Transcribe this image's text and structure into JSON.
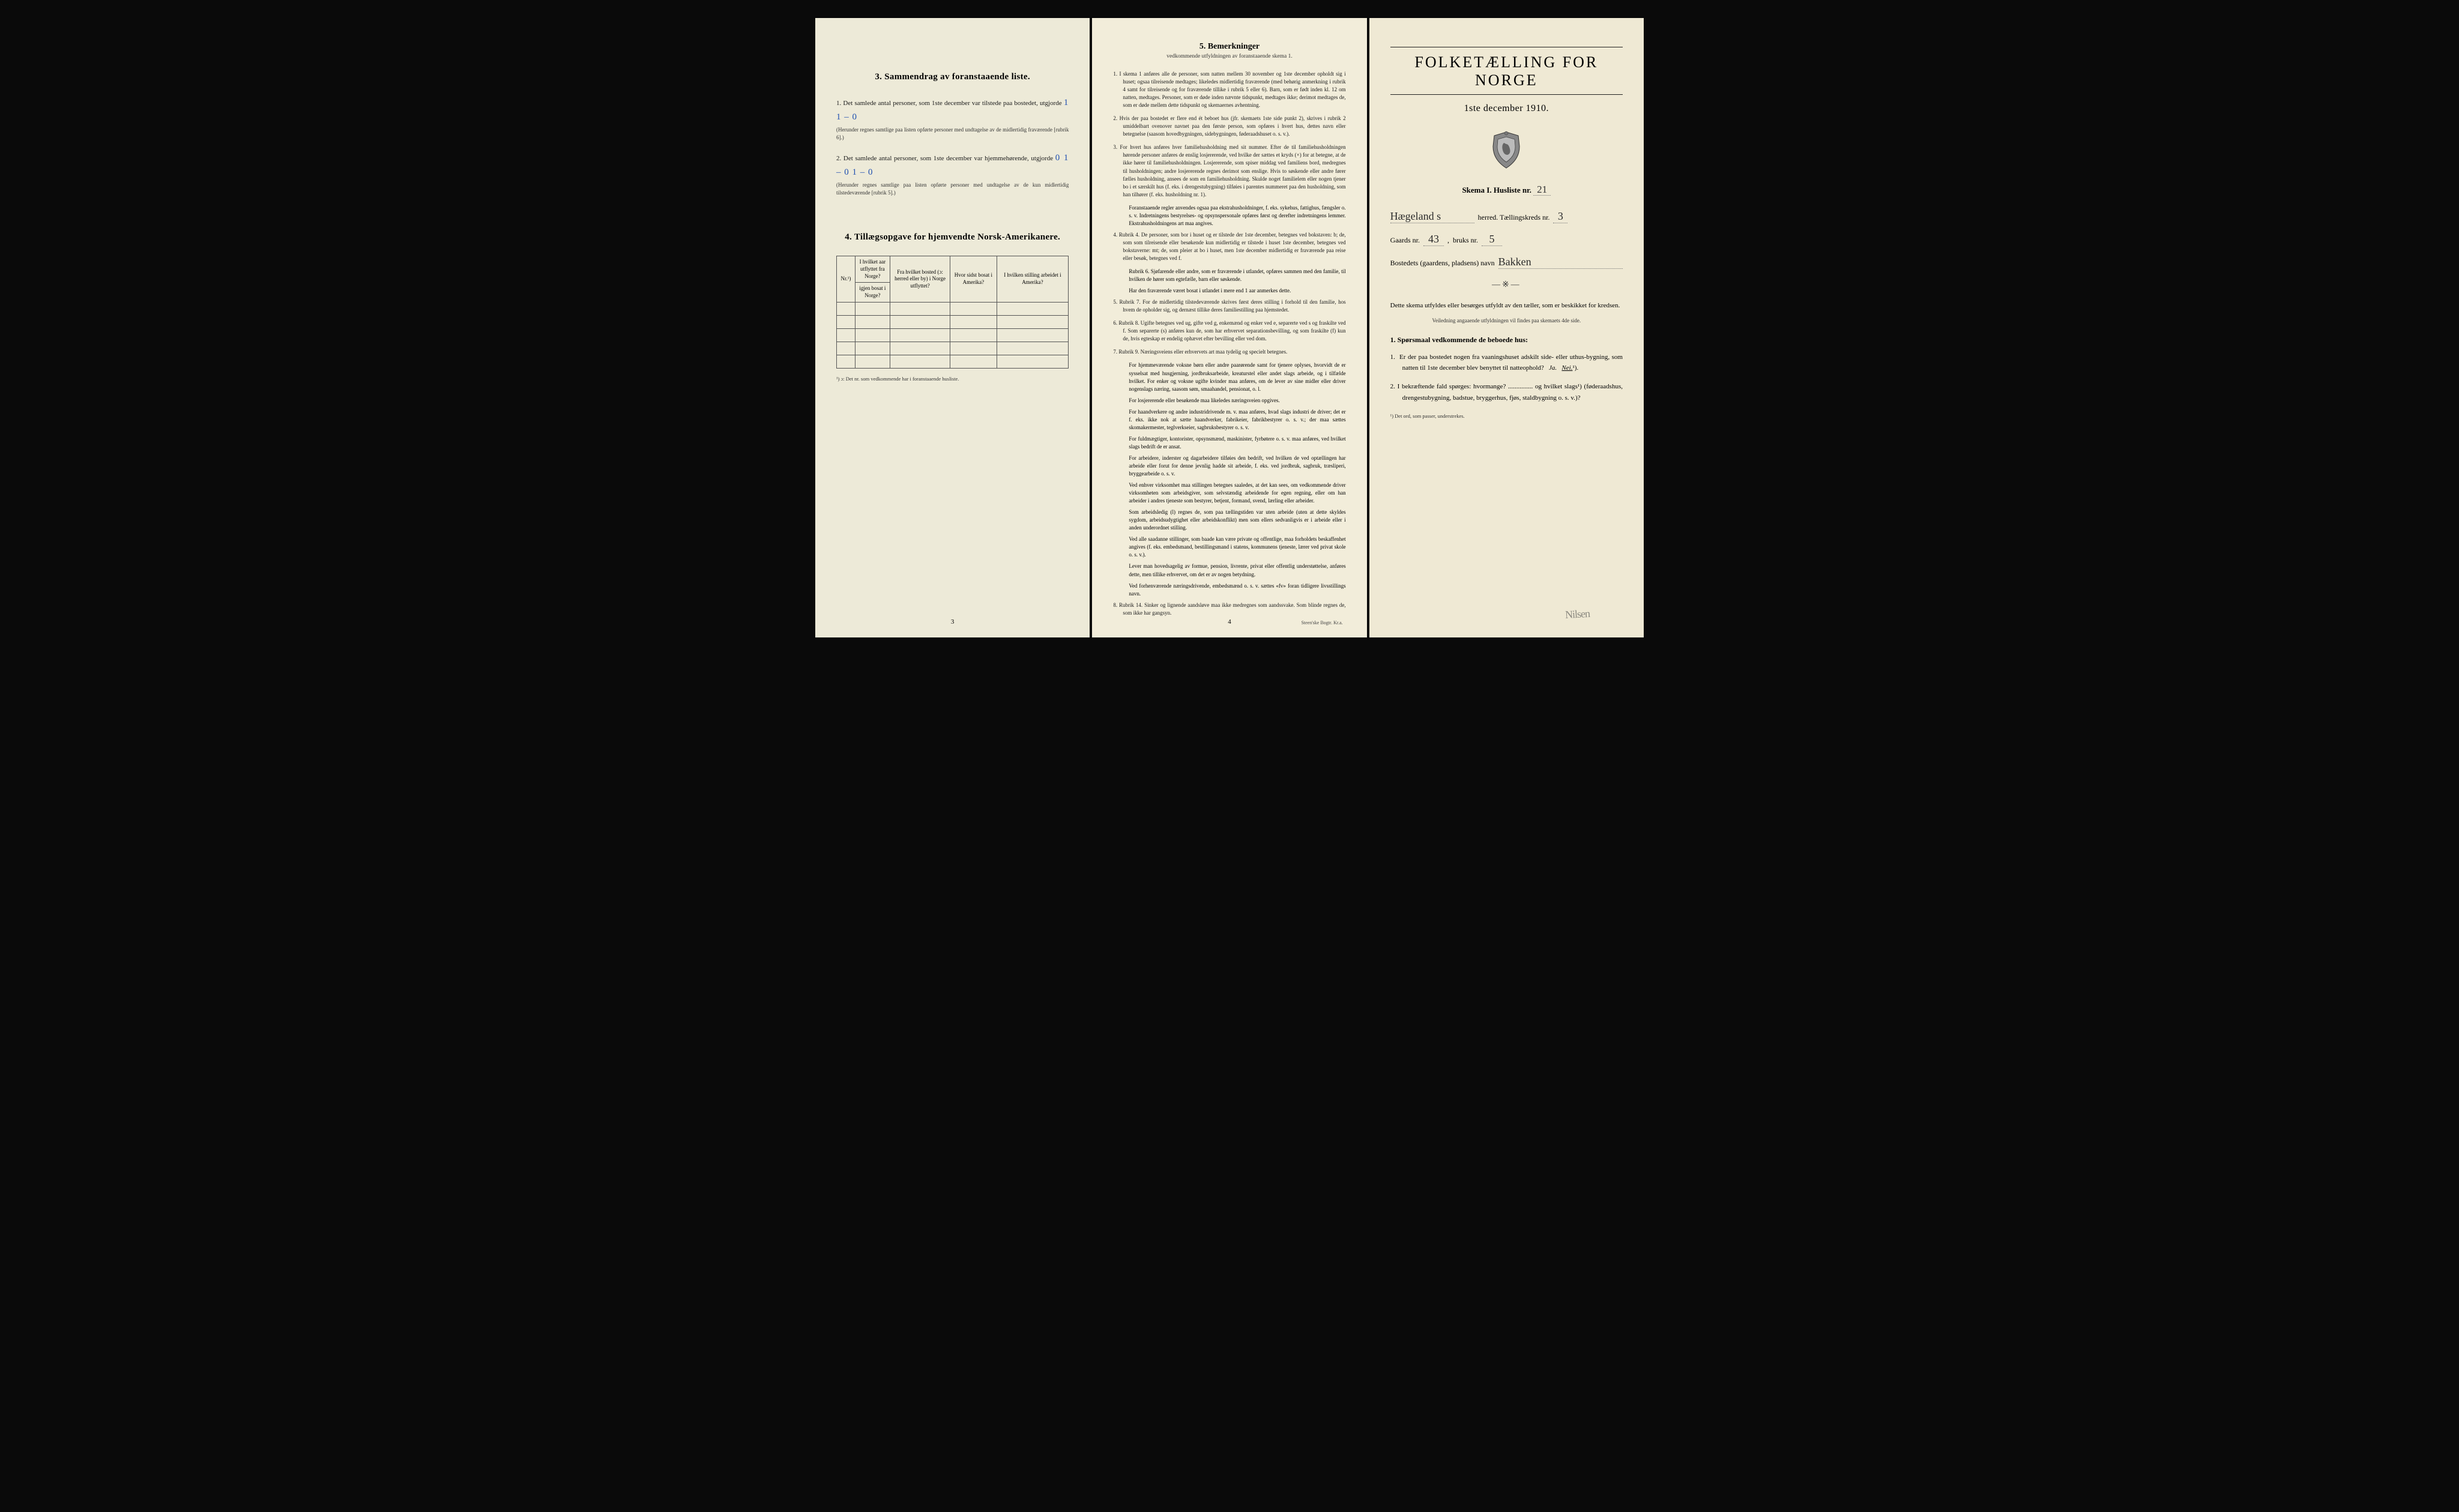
{
  "left": {
    "section3_title": "3.  Sammendrag av foranstaaende liste.",
    "item1_pre": "1.  Det samlede antal personer, som 1ste december var tilstede paa bostedet, utgjorde ",
    "item1_hand": "1    1 – 0",
    "item1_fine": "(Herunder regnes samtlige paa listen opførte personer med undtagelse av de midlertidig fraværende [rubrik 6].)",
    "item2_pre": "2.  Det samlede antal personer, som 1ste december var hjemmehørende, utgjorde ",
    "item2_hand": "0 1 – 0 1 – 0",
    "item2_fine": "(Herunder regnes samtlige paa listen opførte personer med undtagelse av de kun midlertidig tilstedeværende [rubrik 5].)",
    "section4_title": "4.  Tillægsopgave for hjemvendte Norsk-Amerikanere.",
    "th_nr": "Nr.¹)",
    "th_a": "I hvilket aar utflyttet fra Norge?",
    "th_b": "Fra hvilket bosted (ɔ: herred eller by) i Norge utflyttet?",
    "th_c": "Hvor sidst bosat i Amerika?",
    "th_d": "I hvilken stilling arbeidet i Amerika?",
    "th_e": "igjen bosat i Norge?",
    "footnote": "¹) ɔ: Det nr. som vedkommende har i foranstaaende husliste.",
    "page": "3"
  },
  "middle": {
    "title": "5.  Bemerkninger",
    "sub": "vedkommende utfyldningen av foranstaaende skema 1.",
    "items": [
      "1.  I skema 1 anføres alle de personer, som natten mellem 30 november og 1ste december opholdt sig i huset; ogsaa tilreisende medtages; likeledes midlertidig fraværende (med behørig anmerkning i rubrik 4 samt for tilreisende og for fraværende tillike i rubrik 5 eller 6). Barn, som er født inden kl. 12 om natten, medtages. Personer, som er døde inden nævnte tidspunkt, medtages ikke; derimot medtages de, som er døde mellem dette tidspunkt og skemaernes avhentning.",
      "2.  Hvis der paa bostedet er flere end ét beboet hus (jfr. skemaets 1ste side punkt 2), skrives i rubrik 2 umiddelbart ovenover navnet paa den første person, som opføres i hvert hus, dettes navn eller betegnelse (saasom hovedbygningen, sidebygningen, føderaadshuset o. s. v.).",
      "3.  For hvert hus anføres hver familiehusholdning med sit nummer. Efter de til familiehusholdningen hørende personer anføres de enslig losjererende, ved hvilke der sættes et kryds (×) for at betegne, at de ikke hører til familiehusholdningen. Losjererende, som spiser middag ved familiens bord, medregnes til husholdningen; andre losjererende regnes derimot som enslige. Hvis to søskende eller andre fører fælles husholdning, ansees de som en familiehusholdning. Skulde noget familielem eller nogen tjener bo i et særskilt hus (f. eks. i drengestubygning) tilføies i parentes nummeret paa den husholdning, som han tilhører (f. eks. husholdning nr. 1).",
      "    Foranstaaende regler anvendes ogsaa paa ekstrahusholdninger, f. eks. sykehus, fattighus, fængsler o. s. v. Indretningens bestyrelses- og opsynspersonale opføres først og derefter indretningens lemmer. Ekstrahusholdningens art maa angives.",
      "4.  Rubrik 4. De personer, som bor i huset og er tilstede der 1ste december, betegnes ved bokstaven: b; de, som som tilreisende eller besøkende kun midlertidig er tilstede i huset 1ste december, betegnes ved bokstaverne: mt; de, som pleier at bo i huset, men 1ste december midlertidig er fraværende paa reise eller besøk, betegnes ved f.",
      "    Rubrik 6. Sjøfarende eller andre, som er fraværende i utlandet, opføres sammen med den familie, til hvilken de hører som egtefælle, barn eller søskende.",
      "    Har den fraværende været bosat i utlandet i mere end 1 aar anmerkes dette.",
      "5.  Rubrik 7. For de midlertidig tilstedeværende skrives først deres stilling i forhold til den familie, hos hvem de opholder sig, og dernæst tillike deres familiestilling paa hjemstedet.",
      "6.  Rubrik 8. Ugifte betegnes ved ug, gifte ved g, enkemænd og enker ved e, separerte ved s og fraskilte ved f. Som separerte (s) anføres kun de, som har erhvervet separationsbevilling, og som fraskilte (f) kun de, hvis egteskap er endelig ophævet efter bevilling eller ved dom.",
      "7.  Rubrik 9. Næringsveiens eller erhvervets art maa tydelig og specielt betegnes.",
      "    For hjemmeværende voksne børn eller andre paarørende samt for tjenere oplyses, hvorvidt de er sysselsat med husgjerning, jordbruksarbeide, kreaturstel eller andet slags arbeide, og i tilfælde hvilket. For enker og voksne ugifte kvinder maa anføres, om de lever av sine midler eller driver nogenslags næring, saasom søm, smaahandel, pensionat, o. l.",
      "    For losjererende eller besøkende maa likeledes næringsveien opgives.",
      "    For haandverkere og andre industridrivende m. v. maa anføres, hvad slags industri de driver; det er f. eks. ikke nok at sætte haandverker, fabrikeier, fabrikbestyrer o. s. v.; der maa sættes skomakermester, teglverkseier, sagbruksbestyrer o. s. v.",
      "    For fuldmægtiger, kontorister, opsynsmænd, maskinister, fyrbøtere o. s. v. maa anføres, ved hvilket slags bedrift de er ansat.",
      "    For arbeidere, inderster og dagarbeidere tilføies den bedrift, ved hvilken de ved optællingen har arbeide eller forut for denne jevnlig hadde sit arbeide, f. eks. ved jordbruk, sagbruk, træsliperi, bryggearbeide o. s. v.",
      "    Ved enhver virksomhet maa stillingen betegnes saaledes, at det kan sees, om vedkommende driver virksomheten som arbeidsgiver, som selvstændig arbeidende for egen regning, eller om han arbeider i andres tjeneste som bestyrer, betjent, formand, svend, lærling eller arbeider.",
      "    Som arbeidsledig (l) regnes de, som paa tællingstiden var uten arbeide (uten at dette skyldes sygdom, arbeidsudygtighet eller arbeidskonflikt) men som ellers sedvanligvis er i arbeide eller i anden underordnet stilling.",
      "    Ved alle saadanne stillinger, som baade kan være private og offentlige, maa forholdets beskaffenhet angives (f. eks. embedsmand, bestillingsmand i statens, kommunens tjeneste, lærer ved privat skole o. s. v.).",
      "    Lever man hovedsagelig av formue, pension, livrente, privat eller offentlig understøttelse, anføres dette, men tillike erhvervet, om det er av nogen betydning.",
      "    Ved forhenværende næringsdrivende, embedsmænd o. s. v. sættes «fv» foran tidligere livsstillings navn.",
      "8.  Rubrik 14. Sinker og lignende aandsløve maa ikke medregnes som aandssvake. Som blinde regnes de, som ikke har gangsyn."
    ],
    "page": "4",
    "printer": "Steen'ske Bogtr.  Kr.a."
  },
  "right": {
    "main_title": "FOLKETÆLLING FOR NORGE",
    "main_date": "1ste december 1910.",
    "skema_label": "Skema I.   Husliste nr.",
    "husliste_nr": "21",
    "herred_hand": "Hægeland s",
    "herred_label": "herred.  Tællingskreds nr.",
    "kreds_nr": "3",
    "gaards_label": "Gaards nr.",
    "gaards_nr": "43",
    "bruks_label": "bruks nr.",
    "bruks_nr": "5",
    "bosted_label": "Bostedets (gaardens, pladsens) navn",
    "bosted_hand": "Bakken",
    "instr1": "Dette skema utfyldes eller besørges utfyldt av den tæller, som er beskikket for kredsen.",
    "instr2": "Veiledning angaaende utfyldningen vil findes paa skemaets 4de side.",
    "sporsmaal_head": "1. Spørsmaal vedkommende de beboede hus:",
    "q1": "1.  Er der paa bostedet nogen fra vaaningshuset adskilt side- eller uthus-bygning, som natten til 1ste december blev benyttet til natteophold?   Ja.   Nei.¹).",
    "q2": "2.  I bekræftende fald spørges: hvormange? ............... og hvilket slags¹) (føderaadshus, drengestubygning, badstue, bryggerhus, fjøs, staldbygning o. s. v.)?",
    "footnote": "¹) Det ord, som passer, understrekes.",
    "stamp": "Nilsen"
  }
}
